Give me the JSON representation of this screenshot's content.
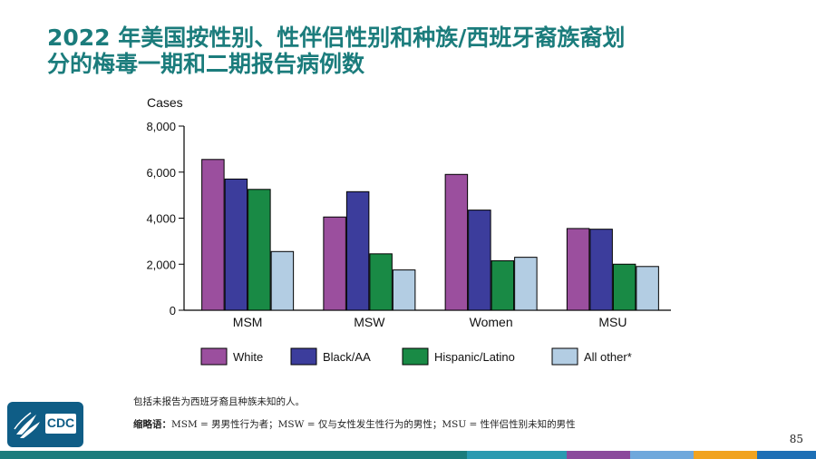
{
  "title": {
    "line1": "2022 年美国按性别、性伴侣性别和种族/西班牙裔族裔划",
    "line2": "分的梅毒一期和二期报告病例数"
  },
  "chart_data": {
    "type": "bar",
    "ylabel": "Cases",
    "ylim": [
      0,
      8000
    ],
    "yticks": [
      0,
      2000,
      4000,
      6000,
      8000
    ],
    "ytick_labels": [
      "0",
      "2,000",
      "4,000",
      "6,000",
      "8,000"
    ],
    "categories": [
      "MSM",
      "MSW",
      "Women",
      "MSU"
    ],
    "series": [
      {
        "name": "White",
        "color": "#9b4f9e",
        "values": [
          6550,
          4050,
          5900,
          3550
        ]
      },
      {
        "name": "Black/AA",
        "color": "#3c3d9c",
        "values": [
          5700,
          5150,
          4350,
          3520
        ]
      },
      {
        "name": "Hispanic/Latino",
        "color": "#198a45",
        "values": [
          5250,
          2450,
          2150,
          2000
        ]
      },
      {
        "name": "All other*",
        "color": "#b3cde3",
        "values": [
          2550,
          1750,
          2300,
          1900
        ]
      }
    ],
    "legend_position": "bottom"
  },
  "footnote": "包括未报告为西班牙裔且种族未知的人。",
  "abbreviations": {
    "label": "缩略语：",
    "text": "MSM = 男男性行为者；MSW = 仅与女性发生性行为的男性；MSU = 性伴侣性别未知的男性"
  },
  "logo": {
    "text": "CDC"
  },
  "page_number": "85",
  "stripe_colors": [
    "#1b7c7c",
    "#2a9ab0",
    "#8b4a9c",
    "#6fa8dc",
    "#f1a31f",
    "#1d6fb5"
  ]
}
